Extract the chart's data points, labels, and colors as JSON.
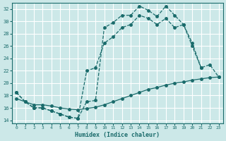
{
  "xlabel": "Humidex (Indice chaleur)",
  "bg_color": "#cce8e8",
  "grid_color": "#ffffff",
  "line_color": "#1a6b6b",
  "xlim": [
    -0.5,
    23.5
  ],
  "ylim": [
    13.5,
    33.0
  ],
  "xticks": [
    0,
    1,
    2,
    3,
    4,
    5,
    6,
    7,
    8,
    9,
    10,
    11,
    12,
    13,
    14,
    15,
    16,
    17,
    18,
    19,
    20,
    21,
    22,
    23
  ],
  "yticks": [
    14,
    16,
    18,
    20,
    22,
    24,
    26,
    28,
    30,
    32
  ],
  "line1_x": [
    0,
    1,
    2,
    3,
    4,
    5,
    6,
    7,
    8,
    9,
    10,
    11,
    12,
    13,
    14,
    15,
    16,
    17,
    18,
    19,
    20,
    21
  ],
  "line1_y": [
    18.5,
    17.0,
    16.0,
    16.0,
    15.5,
    15.0,
    14.5,
    14.3,
    17.0,
    17.2,
    29.0,
    29.8,
    31.0,
    31.0,
    32.5,
    31.8,
    30.8,
    32.5,
    31.0,
    29.5,
    26.0,
    22.5
  ],
  "line2_x": [
    0,
    1,
    2,
    3,
    4,
    5,
    6,
    7,
    8,
    9,
    10,
    11,
    12,
    13,
    14,
    15,
    16,
    17,
    18,
    19,
    20,
    21,
    22,
    23
  ],
  "line2_y": [
    17.5,
    17.0,
    16.5,
    16.5,
    16.3,
    16.0,
    15.8,
    15.7,
    15.9,
    16.1,
    16.5,
    17.0,
    17.5,
    18.0,
    18.5,
    19.0,
    19.3,
    19.7,
    20.0,
    20.2,
    20.5,
    20.7,
    20.9,
    21.0
  ],
  "line3_x": [
    0,
    1,
    2,
    3,
    4,
    5,
    6,
    7,
    8,
    9,
    10,
    11,
    12,
    13,
    14,
    15,
    16,
    17,
    18,
    19,
    20,
    21,
    22,
    23
  ],
  "line3_y": [
    18.5,
    17.0,
    16.0,
    16.0,
    15.5,
    15.0,
    14.5,
    14.3,
    22.0,
    22.5,
    26.5,
    27.5,
    29.0,
    29.5,
    31.0,
    30.5,
    29.5,
    30.5,
    29.0,
    29.5,
    26.5,
    22.5,
    23.0,
    21.0
  ]
}
